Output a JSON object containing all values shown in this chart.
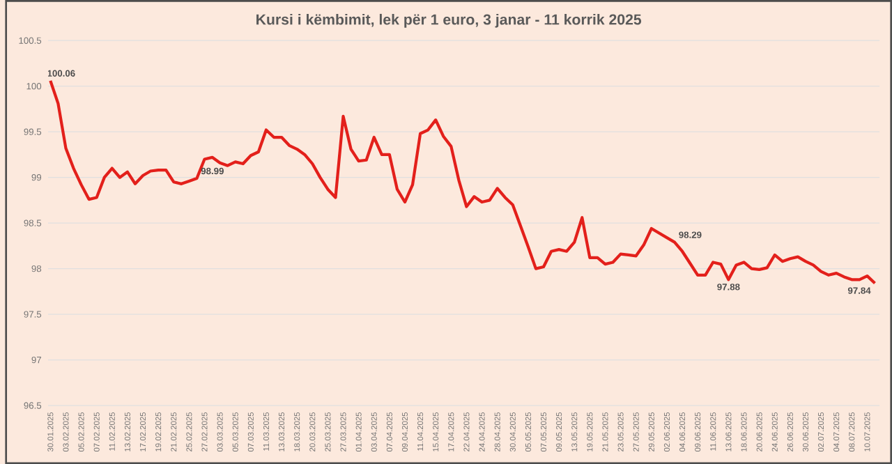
{
  "chart_data": {
    "type": "line",
    "title": "Kursi i këmbimit, lek për 1 euro, 3 janar - 11 korrik 2025",
    "categories": [
      "30.01.2025",
      null,
      "03.02.2025",
      null,
      "05.02.2025",
      null,
      "07.02.2025",
      null,
      "11.02.2025",
      null,
      "13.02.2025",
      null,
      "17.02.2025",
      null,
      "19.02.2025",
      null,
      "21.02.2025",
      null,
      "25.02.2025",
      null,
      "27.02.2025",
      null,
      "03.03.2025",
      null,
      "05.03.2025",
      null,
      "07.03.2025",
      null,
      "11.03.2025",
      null,
      "13.03.2025",
      null,
      "18.03.2025",
      null,
      "20.03.2025",
      null,
      "25.03.2025",
      null,
      "27.03.2025",
      null,
      "01.04.2025",
      null,
      "03.04.2025",
      null,
      "07.04.2025",
      null,
      "09.04.2025",
      null,
      "11.04.2025",
      null,
      "15.04.2025",
      null,
      "17.04.2025",
      null,
      "22.04.2025",
      null,
      "24.04.2025",
      null,
      "28.04.2025",
      null,
      "30.04.2025",
      null,
      "05.05.2025",
      null,
      "07.05.2025",
      null,
      "09.05.2025",
      null,
      "13.05.2025",
      null,
      "19.05.2025",
      null,
      "21.05.2025",
      null,
      "23.05.2025",
      null,
      "27.05.2025",
      null,
      "29.05.2025",
      null,
      "02.06.2025",
      null,
      "04.06.2025",
      null,
      "09.06.2025",
      null,
      "11.06.2025",
      null,
      "13.06.2025",
      null,
      "18.06.2025",
      null,
      "20.06.2025",
      null,
      "24.06.2025",
      null,
      "26.06.2025",
      null,
      "30.06.2025",
      null,
      "02.07.2025",
      null,
      "04.07.2025",
      null,
      "08.07.2025",
      null,
      "10.07.2025",
      null
    ],
    "values": [
      100.06,
      99.81,
      99.32,
      99.1,
      98.92,
      98.76,
      98.78,
      99.0,
      99.1,
      99.0,
      99.06,
      98.93,
      99.02,
      99.07,
      99.08,
      99.08,
      98.95,
      98.93,
      98.96,
      98.99,
      99.2,
      99.22,
      99.16,
      99.13,
      99.17,
      99.15,
      99.24,
      99.28,
      99.52,
      99.44,
      99.44,
      99.35,
      99.31,
      99.25,
      99.15,
      99.0,
      98.87,
      98.78,
      99.67,
      99.31,
      99.18,
      99.19,
      99.44,
      99.25,
      99.25,
      98.87,
      98.73,
      98.92,
      99.48,
      99.52,
      99.63,
      99.45,
      99.34,
      98.97,
      98.68,
      98.79,
      98.73,
      98.75,
      98.88,
      98.78,
      98.7,
      98.47,
      98.24,
      98.0,
      98.02,
      98.19,
      98.21,
      98.19,
      98.29,
      98.56,
      98.12,
      98.12,
      98.05,
      98.07,
      98.16,
      98.15,
      98.14,
      98.26,
      98.44,
      98.39,
      98.34,
      98.29,
      98.19,
      98.06,
      97.93,
      97.93,
      98.07,
      98.05,
      97.88,
      98.04,
      98.07,
      98.0,
      97.99,
      98.01,
      98.15,
      98.08,
      98.11,
      98.13,
      98.08,
      98.04,
      97.97,
      97.93,
      97.95,
      97.91,
      97.88,
      97.88,
      97.92,
      97.84
    ],
    "value_labels": [
      "100.06",
      null,
      null,
      null,
      null,
      null,
      null,
      null,
      null,
      null,
      null,
      null,
      null,
      null,
      null,
      null,
      null,
      null,
      null,
      "98.99",
      null,
      null,
      null,
      null,
      null,
      null,
      null,
      null,
      null,
      null,
      null,
      null,
      null,
      null,
      null,
      null,
      null,
      null,
      null,
      null,
      null,
      null,
      null,
      null,
      null,
      null,
      null,
      null,
      null,
      null,
      null,
      null,
      null,
      null,
      null,
      null,
      null,
      null,
      null,
      null,
      null,
      null,
      null,
      null,
      null,
      null,
      null,
      null,
      null,
      null,
      null,
      null,
      null,
      null,
      null,
      null,
      null,
      null,
      null,
      null,
      null,
      "98.29",
      null,
      null,
      null,
      null,
      null,
      null,
      "97.88",
      null,
      null,
      null,
      null,
      null,
      null,
      null,
      null,
      null,
      null,
      null,
      null,
      null,
      null,
      null,
      null,
      null,
      null,
      "97.84"
    ],
    "color": "#e3201b",
    "ylim": [
      96.5,
      100.5
    ],
    "yticks": [
      96.5,
      97,
      97.5,
      98,
      98.5,
      99,
      99.5,
      100,
      100.5
    ],
    "grid": "y"
  }
}
